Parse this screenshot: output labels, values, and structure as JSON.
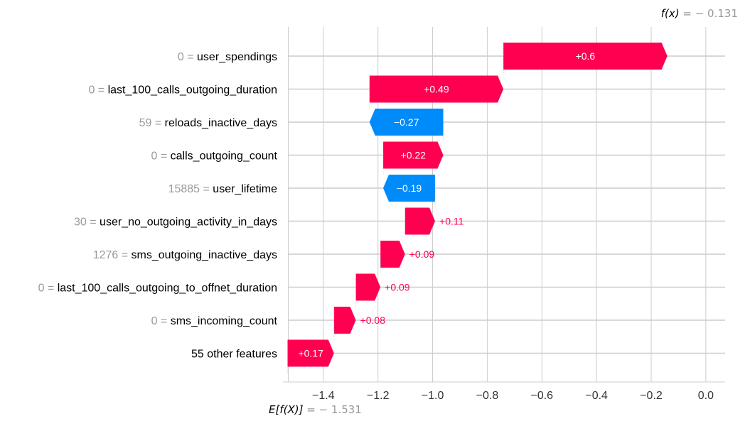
{
  "chart_data": {
    "type": "waterfall",
    "base_value": -1.531,
    "output_value": -0.131,
    "base_value_label": {
      "prefix": "E[f(X)]",
      "suffix": " = − 1.531"
    },
    "output_value_label": {
      "prefix": "f(x)",
      "suffix": " = − 0.131"
    },
    "xlim": [
      -1.55,
      0.1
    ],
    "xticks": [
      {
        "value": -1.4,
        "label": "−1.4"
      },
      {
        "value": -1.2,
        "label": "−1.2"
      },
      {
        "value": -1.0,
        "label": "−1.0"
      },
      {
        "value": -0.8,
        "label": "−0.8"
      },
      {
        "value": -0.6,
        "label": "−0.6"
      },
      {
        "value": -0.4,
        "label": "−0.4"
      },
      {
        "value": -0.2,
        "label": "−0.2"
      },
      {
        "value": 0.0,
        "label": "0.0"
      }
    ],
    "features": [
      {
        "value_text": "0",
        "name": "user_spendings",
        "shap": 0.6,
        "label": "+0.6"
      },
      {
        "value_text": "0",
        "name": "last_100_calls_outgoing_duration",
        "shap": 0.49,
        "label": "+0.49"
      },
      {
        "value_text": "59",
        "name": "reloads_inactive_days",
        "shap": -0.27,
        "label": "−0.27"
      },
      {
        "value_text": "0",
        "name": "calls_outgoing_count",
        "shap": 0.22,
        "label": "+0.22"
      },
      {
        "value_text": "15885",
        "name": "user_lifetime",
        "shap": -0.19,
        "label": "−0.19"
      },
      {
        "value_text": "30",
        "name": "user_no_outgoing_activity_in_days",
        "shap": 0.11,
        "label": "+0.11"
      },
      {
        "value_text": "1276",
        "name": "sms_outgoing_inactive_days",
        "shap": 0.09,
        "label": "+0.09"
      },
      {
        "value_text": "0",
        "name": "last_100_calls_outgoing_to_offnet_duration",
        "shap": 0.09,
        "label": "+0.09"
      },
      {
        "value_text": "0",
        "name": "sms_incoming_count",
        "shap": 0.08,
        "label": "+0.08"
      },
      {
        "value_text": "",
        "name": "55 other features",
        "shap": 0.17,
        "label": "+0.17"
      }
    ],
    "colors": {
      "positive": "#ff0051",
      "negative": "#008bfb",
      "grid": "#cccccc",
      "feature_value_text": "#999999",
      "feature_name_text": "#000000",
      "tick_text": "#333333",
      "inside_label": "#ffffff"
    },
    "grid": true
  }
}
